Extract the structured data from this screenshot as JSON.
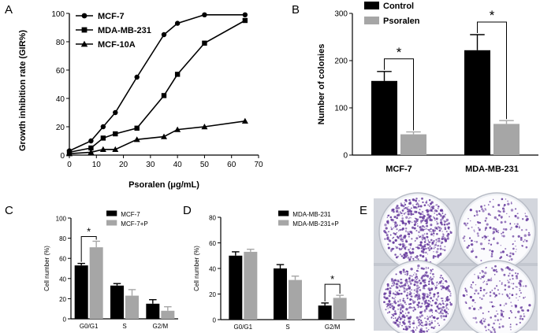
{
  "chart_data": [
    {
      "panel": "A",
      "type": "line",
      "xlabel": "Psoralen (μg/mL)",
      "ylabel": "Growth inhibition rate (GIR%)",
      "xlim": [
        0,
        70
      ],
      "ylim": [
        0,
        100
      ],
      "xticks": [
        "0",
        "10",
        "20",
        "30",
        "40",
        "50",
        "60",
        "70"
      ],
      "yticks": [
        "0",
        "20",
        "40",
        "60",
        "80",
        "100"
      ],
      "legend_position": "top-left",
      "series": [
        {
          "name": "MCF-7",
          "marker": "circle",
          "x": [
            0,
            8,
            12.5,
            17,
            25,
            35,
            40,
            50,
            65
          ],
          "y": [
            3,
            10,
            20,
            30,
            55,
            85,
            93,
            99,
            99
          ]
        },
        {
          "name": "MDA-MB-231",
          "marker": "square",
          "x": [
            0,
            8,
            12.5,
            17,
            25,
            35,
            40,
            50,
            65
          ],
          "y": [
            2,
            5,
            12,
            15,
            19,
            42,
            57,
            79,
            95
          ]
        },
        {
          "name": "MCF-10A",
          "marker": "triangle",
          "x": [
            0,
            8,
            12.5,
            17,
            25,
            35,
            40,
            50,
            65
          ],
          "y": [
            1,
            2,
            4,
            4,
            11,
            13,
            18,
            20,
            24
          ]
        }
      ]
    },
    {
      "panel": "B",
      "type": "bar",
      "ylabel": "Number of colonies",
      "ylim": [
        0,
        300
      ],
      "yticks": [
        "0",
        "100",
        "200",
        "300"
      ],
      "categories": [
        "MCF-7",
        "MDA-MB-231"
      ],
      "legend_position": "top",
      "series": [
        {
          "name": "Control",
          "color": "#000000",
          "values": [
            157,
            222
          ],
          "errors": [
            20,
            33
          ]
        },
        {
          "name": "Psoralen",
          "color": "#a6a6a6",
          "values": [
            44,
            66
          ],
          "errors": [
            5,
            7
          ]
        }
      ],
      "annotations": [
        "*",
        "*"
      ]
    },
    {
      "panel": "C",
      "type": "bar",
      "ylabel": "Cell number (%)",
      "ylim": [
        0,
        100
      ],
      "yticks": [
        "0",
        "20",
        "40",
        "60",
        "80",
        "100"
      ],
      "categories": [
        "G0/G1",
        "S",
        "G2/M"
      ],
      "legend_position": "top-right",
      "series": [
        {
          "name": "MCF-7",
          "color": "#000000",
          "values": [
            53,
            33,
            15
          ],
          "errors": [
            2,
            2,
            4
          ]
        },
        {
          "name": "MCF-7+P",
          "color": "#a6a6a6",
          "values": [
            71,
            23,
            8
          ],
          "errors": [
            6,
            6,
            4
          ]
        }
      ],
      "annotations": [
        "*"
      ]
    },
    {
      "panel": "D",
      "type": "bar",
      "ylabel": "Cell number (%)",
      "ylim": [
        0,
        80
      ],
      "yticks": [
        "0",
        "20",
        "40",
        "60",
        "80"
      ],
      "categories": [
        "G0/G1",
        "S",
        "G2/M"
      ],
      "legend_position": "top-right",
      "series": [
        {
          "name": "MDA-MB-231",
          "color": "#000000",
          "values": [
            50,
            40,
            11
          ],
          "errors": [
            3,
            3,
            2
          ]
        },
        {
          "name": "MDA-MB-231+P",
          "color": "#a6a6a6",
          "values": [
            53,
            31,
            17
          ],
          "errors": [
            2,
            3,
            2
          ]
        }
      ],
      "annotations": [
        "*"
      ]
    }
  ],
  "panel_labels": [
    "A",
    "B",
    "C",
    "D",
    "E"
  ],
  "photo": {
    "subject": "colony-formation-plates",
    "stain_color": "#6a3fa0"
  }
}
